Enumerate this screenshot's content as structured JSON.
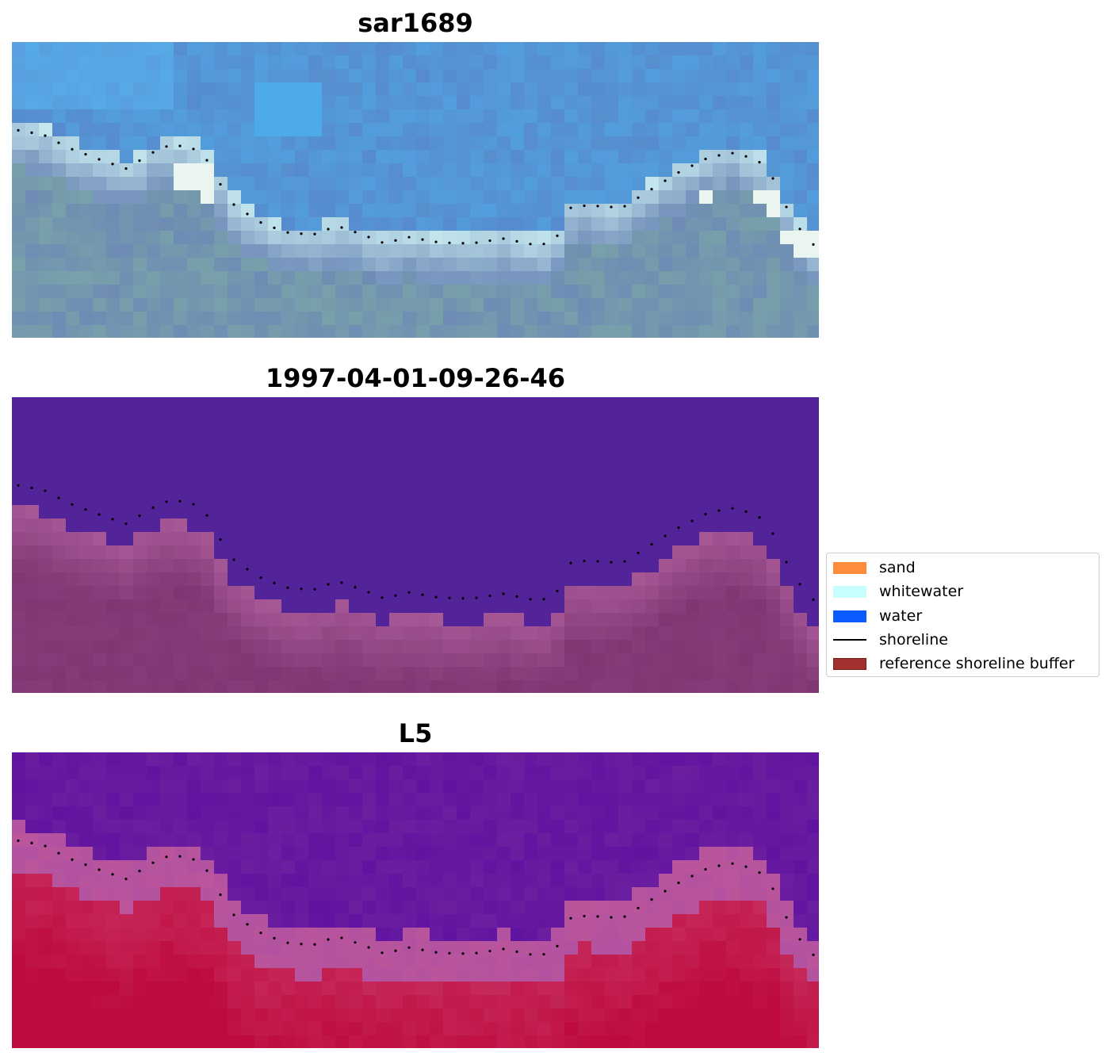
{
  "panels": [
    {
      "title": "sar1689",
      "style": "rgb"
    },
    {
      "title": "1997-04-01-09-26-46",
      "style": "classification"
    },
    {
      "title": "L5",
      "style": "index"
    }
  ],
  "legend": {
    "items": [
      {
        "label": "sand",
        "type": "patch",
        "color": "#ff8c3a"
      },
      {
        "label": "whitewater",
        "type": "patch",
        "color": "#c8fdfd"
      },
      {
        "label": "water",
        "type": "patch",
        "color": "#0b5cff"
      },
      {
        "label": "shoreline",
        "type": "line",
        "color": "#000000"
      },
      {
        "label": "reference shoreline buffer",
        "type": "patch",
        "color": "#a53030"
      }
    ]
  },
  "colors": {
    "water_class": "#53239a",
    "land_class": "#7f3774",
    "index_low": "#5a0a9e",
    "index_high": "#bc0a3c"
  }
}
